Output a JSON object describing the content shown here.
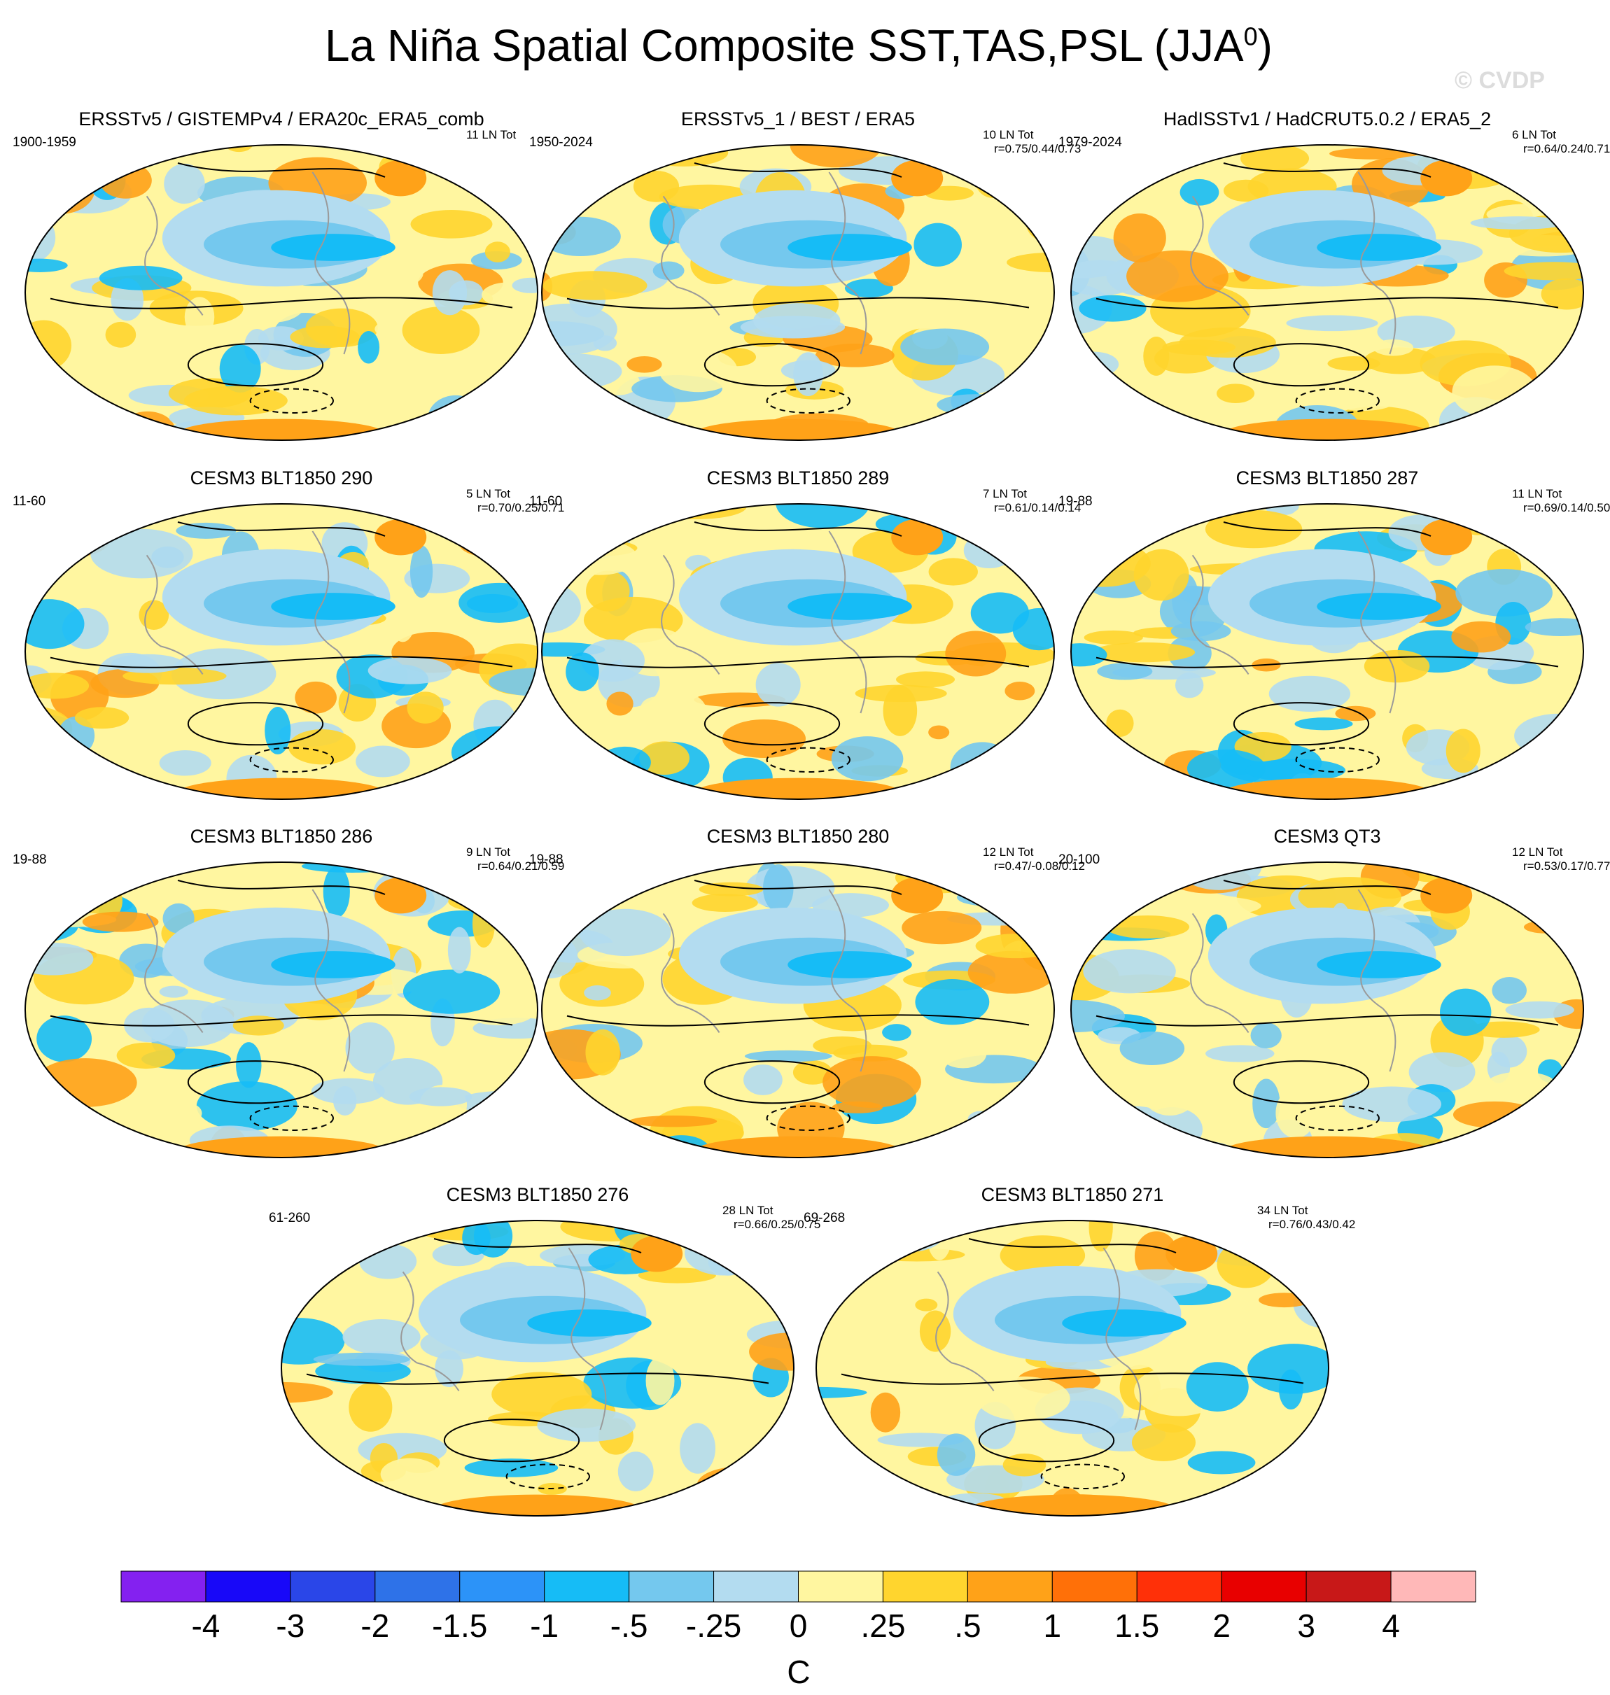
{
  "chart_data": {
    "type": "heatmap",
    "title": "La Niña Spatial Composite SST,TAS,PSL (JJA",
    "title_superscript": "0",
    "title_suffix": ")",
    "watermark": "© CVDP",
    "colorbar": {
      "unit": "C",
      "labels": [
        "-4",
        "-3",
        "-2",
        "-1.5",
        "-1",
        "-.5",
        "-.25",
        "0",
        ".25",
        ".5",
        "1",
        "1.5",
        "2",
        "3",
        "4"
      ],
      "colors": [
        "#8421f0",
        "#1808f8",
        "#2a46e8",
        "#2e72e8",
        "#2c93f8",
        "#16bcf6",
        "#74c8ee",
        "#b3dcf0",
        "#fff6a0",
        "#ffd52e",
        "#ffa218",
        "#ff7008",
        "#ff3008",
        "#e80000",
        "#c81818",
        "#ffb8b8"
      ]
    },
    "panels": [
      {
        "title": "ERSSTv5 / GISTEMPv4 / ERA20c_ERA5_comb",
        "period": "1900-1959",
        "events": "11 LN Tot",
        "corr": ""
      },
      {
        "title": "ERSSTv5_1 / BEST / ERA5",
        "period": "1950-2024",
        "events": "10 LN Tot",
        "corr": "r=0.75/0.44/0.73"
      },
      {
        "title": "HadISSTv1 / HadCRUT5.0.2 / ERA5_2",
        "period": "1979-2024",
        "events": "6 LN Tot",
        "corr": "r=0.64/0.24/0.71"
      },
      {
        "title": "CESM3 BLT1850 290",
        "period": "11-60",
        "events": "5 LN Tot",
        "corr": "r=0.70/0.25/0.71"
      },
      {
        "title": "CESM3 BLT1850 289",
        "period": "11-60",
        "events": "7 LN Tot",
        "corr": "r=0.61/0.14/0.14"
      },
      {
        "title": "CESM3 BLT1850 287",
        "period": "19-88",
        "events": "11 LN Tot",
        "corr": "r=0.69/0.14/0.50"
      },
      {
        "title": "CESM3 BLT1850 286",
        "period": "19-88",
        "events": "9 LN Tot",
        "corr": "r=0.64/0.21/0.59"
      },
      {
        "title": "CESM3 BLT1850 280",
        "period": "19-88",
        "events": "12 LN Tot",
        "corr": "r=0.47/-0.08/0.12"
      },
      {
        "title": "CESM3 QT3",
        "period": "20-100",
        "events": "12 LN Tot",
        "corr": "r=0.53/0.17/0.77"
      },
      {
        "title": "CESM3 BLT1850 276",
        "period": "61-260",
        "events": "28 LN Tot",
        "corr": "r=0.66/0.25/0.75"
      },
      {
        "title": "CESM3 BLT1850 271",
        "period": "69-268",
        "events": "34 LN Tot",
        "corr": "r=0.76/0.43/0.42"
      }
    ]
  }
}
